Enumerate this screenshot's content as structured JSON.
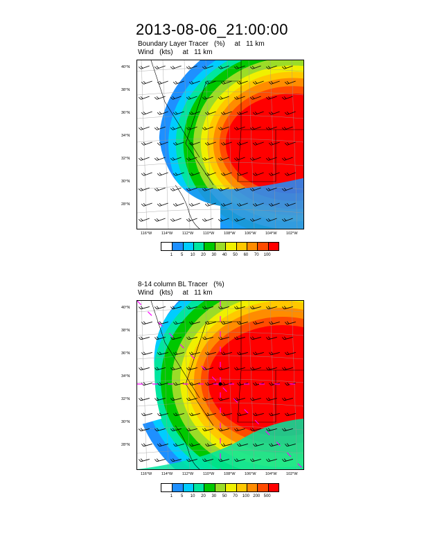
{
  "title": "2013-08-06_21:00:00",
  "panels": [
    {
      "id": "top",
      "line1": "Boundary Layer Tracer   (%)     at   11 km",
      "line2": "Wind   (kts)     at   11 km",
      "lat_ticks": [
        "40°N",
        "38°N",
        "36°N",
        "34°N",
        "32°N",
        "30°N",
        "28°N"
      ],
      "lon_ticks": [
        "116°W",
        "114°W",
        "112°W",
        "110°W",
        "108°W",
        "106°W",
        "104°W",
        "102°W"
      ],
      "colorbar": {
        "labels": [
          "1",
          "5",
          "10",
          "20",
          "30",
          "40",
          "50",
          "60",
          "70",
          "100"
        ],
        "colors": [
          "#ffffff",
          "#1e90ff",
          "#00cdff",
          "#00e6a0",
          "#00c800",
          "#9bdc28",
          "#f0f000",
          "#ffc800",
          "#ff8c00",
          "#ff4b00",
          "#ff0000"
        ]
      }
    },
    {
      "id": "bottom",
      "line1": "8-14 column BL Tracer   (%)",
      "line2": "Wind   (kts)     at   11 km",
      "lat_ticks": [
        "40°N",
        "38°N",
        "36°N",
        "34°N",
        "32°N",
        "30°N",
        "28°N"
      ],
      "lon_ticks": [
        "116°W",
        "114°W",
        "112°W",
        "110°W",
        "108°W",
        "106°W",
        "104°W",
        "102°W"
      ],
      "colorbar": {
        "labels": [
          "1",
          "5",
          "10",
          "20",
          "30",
          "50",
          "70",
          "100",
          "200",
          "500"
        ],
        "colors": [
          "#ffffff",
          "#1e90ff",
          "#00cdff",
          "#00e6a0",
          "#00c800",
          "#9bdc28",
          "#f0f000",
          "#ffc800",
          "#ff8c00",
          "#ff4b00",
          "#ff0000"
        ]
      }
    }
  ]
}
